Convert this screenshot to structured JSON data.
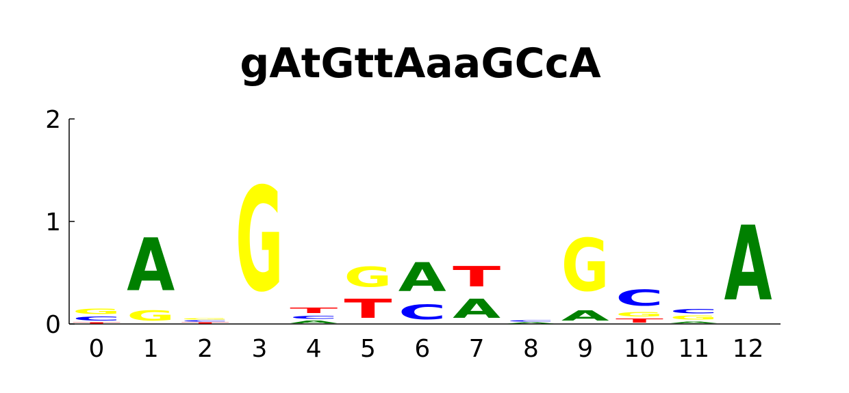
{
  "chart_data": {
    "type": "sequence-logo",
    "title": "gAtGttAaaGCcA",
    "xlabel": "",
    "ylabel": "",
    "ylim": [
      0,
      2
    ],
    "yticks": [
      "0",
      "1",
      "2"
    ],
    "positions": [
      "0",
      "1",
      "2",
      "3",
      "4",
      "5",
      "6",
      "7",
      "8",
      "9",
      "10",
      "11",
      "12"
    ],
    "letter_colors": {
      "A": "#008000",
      "C": "#0000ff",
      "G": "#ffff00",
      "T": "#ff0000"
    },
    "stacks": [
      [
        {
          "letter": "T",
          "height": 0.02
        },
        {
          "letter": "C",
          "height": 0.06
        },
        {
          "letter": "G",
          "height": 0.08
        }
      ],
      [
        {
          "letter": "G",
          "height": 0.16
        },
        {
          "letter": "A",
          "height": 0.83
        }
      ],
      [
        {
          "letter": "T",
          "height": 0.02
        },
        {
          "letter": "C",
          "height": 0.02
        },
        {
          "letter": "G",
          "height": 0.02
        }
      ],
      [
        {
          "letter": "G",
          "height": 1.63
        }
      ],
      [
        {
          "letter": "A",
          "height": 0.04
        },
        {
          "letter": "C",
          "height": 0.05
        },
        {
          "letter": "T",
          "height": 0.08
        }
      ],
      [
        {
          "letter": "T",
          "height": 0.3
        },
        {
          "letter": "G",
          "height": 0.31
        }
      ],
      [
        {
          "letter": "C",
          "height": 0.23
        },
        {
          "letter": "A",
          "height": 0.45
        }
      ],
      [
        {
          "letter": "A",
          "height": 0.3
        },
        {
          "letter": "T",
          "height": 0.32
        }
      ],
      [
        {
          "letter": "A",
          "height": 0.02
        },
        {
          "letter": "C",
          "height": 0.02
        }
      ],
      [
        {
          "letter": "A",
          "height": 0.16
        },
        {
          "letter": "G",
          "height": 0.82
        }
      ],
      [
        {
          "letter": "T",
          "height": 0.06
        },
        {
          "letter": "G",
          "height": 0.07
        },
        {
          "letter": "C",
          "height": 0.25
        }
      ],
      [
        {
          "letter": "A",
          "height": 0.03
        },
        {
          "letter": "G",
          "height": 0.06
        },
        {
          "letter": "C",
          "height": 0.07
        }
      ],
      [
        {
          "letter": "A",
          "height": 1.17
        }
      ]
    ]
  }
}
